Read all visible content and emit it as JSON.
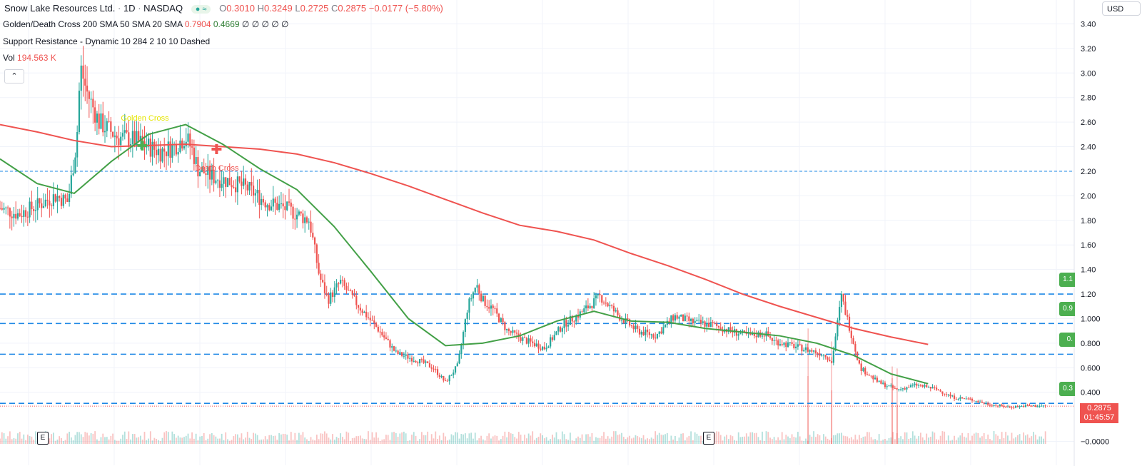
{
  "symbol": {
    "name": "Snow Lake Resources Ltd.",
    "interval": "1D",
    "exchange": "NASDAQ",
    "open_label": "O",
    "open": "0.3010",
    "high_label": "H",
    "high": "0.3249",
    "low_label": "L",
    "low": "0.2725",
    "close_label": "C",
    "close": "0.2875",
    "change": "−0.0177 (−5.80%)"
  },
  "indicators": {
    "gdc_name": "Golden/Death Cross 200 SMA 50 SMA 20 SMA",
    "gdc_v1": "0.7904",
    "gdc_v2": "0.4669",
    "gdc_rest": "∅ ∅ ∅ ∅ ∅",
    "sr_name": "Support Resistance - Dynamic 10 284 2 10 10 Dashed",
    "vol_name": "Vol",
    "vol_value": "194.563 K"
  },
  "toolbar": {
    "collapse_icon": "chevron-up-icon",
    "currency": "USD"
  },
  "last_price": {
    "value": "0.2875",
    "countdown": "01:45:57"
  },
  "sr_tags": [
    {
      "label": "1.1",
      "price": 1.2
    },
    {
      "label": "0.9",
      "price": 0.96
    },
    {
      "label": "0.",
      "price": 0.71
    },
    {
      "label": "0.3",
      "price": 0.31
    }
  ],
  "earnings_flags": [
    "E",
    "E"
  ],
  "colors": {
    "up": "#26a69a",
    "down": "#ef5350",
    "green": "#4caf50",
    "red_line": "#ef5350",
    "sma50": "#43a047",
    "sr_line": "#1e88e5",
    "grid": "#f0f3fa",
    "dotted": "#ef5350"
  },
  "chart_data": {
    "type": "line",
    "y_axis_ticks": [
      "3.40",
      "3.20",
      "3.00",
      "2.80",
      "2.60",
      "2.40",
      "2.20",
      "2.00",
      "1.80",
      "1.60",
      "1.40",
      "1.20",
      "1.000",
      "0.800",
      "0.600",
      "0.400",
      "−0.0000"
    ],
    "ylim": [
      -0.02,
      3.42
    ],
    "annotations": [
      {
        "text": "Golden Cross",
        "x_index": 115,
        "price": 2.41
      },
      {
        "text": "Death Cross",
        "x_index": 175,
        "price": 2.38
      }
    ],
    "support_resistance_levels": [
      2.2,
      1.2,
      0.96,
      0.71,
      0.31
    ],
    "sma200": {
      "x": [
        0,
        30,
        60,
        90,
        120,
        150,
        180,
        210,
        240,
        270,
        300,
        330,
        360,
        390,
        420,
        450,
        480,
        510,
        540,
        570,
        600,
        630,
        660,
        690,
        720,
        750
      ],
      "y": [
        2.58,
        2.52,
        2.45,
        2.4,
        2.41,
        2.42,
        2.4,
        2.38,
        2.34,
        2.27,
        2.18,
        2.08,
        1.97,
        1.86,
        1.76,
        1.71,
        1.64,
        1.53,
        1.43,
        1.32,
        1.2,
        1.1,
        1.01,
        0.92,
        0.85,
        0.79
      ]
    },
    "sma50": {
      "x": [
        0,
        30,
        60,
        90,
        120,
        150,
        180,
        210,
        240,
        270,
        300,
        330,
        360,
        390,
        420,
        450,
        480,
        510,
        540,
        570,
        600,
        630,
        660,
        690,
        720,
        750
      ],
      "y": [
        2.3,
        2.1,
        2.02,
        2.28,
        2.5,
        2.58,
        2.42,
        2.22,
        2.05,
        1.75,
        1.38,
        1.0,
        0.78,
        0.8,
        0.86,
        0.98,
        1.06,
        0.98,
        0.97,
        0.92,
        0.89,
        0.86,
        0.8,
        0.7,
        0.55,
        0.47
      ]
    },
    "price": {
      "x": [
        0,
        15,
        30,
        45,
        55,
        62,
        65,
        70,
        80,
        95,
        110,
        120,
        130,
        140,
        150,
        155,
        160,
        170,
        185,
        200,
        215,
        230,
        250,
        258,
        265,
        275,
        290,
        305,
        320,
        340,
        350,
        360,
        370,
        378,
        385,
        390,
        398,
        410,
        425,
        440,
        455,
        470,
        485,
        500,
        515,
        530,
        545,
        560,
        575,
        590,
        605,
        618,
        625,
        640,
        655,
        668,
        672,
        680,
        695,
        710,
        725,
        740,
        755,
        762,
        770,
        785,
        800,
        815,
        830,
        845
      ],
      "y": [
        1.9,
        1.85,
        1.92,
        2.0,
        1.95,
        2.45,
        3.05,
        2.85,
        2.6,
        2.48,
        2.45,
        2.4,
        2.36,
        2.4,
        2.48,
        2.38,
        2.22,
        2.16,
        2.12,
        2.06,
        1.95,
        1.9,
        1.8,
        1.35,
        1.15,
        1.3,
        1.1,
        0.92,
        0.72,
        0.65,
        0.6,
        0.48,
        0.62,
        1.1,
        1.28,
        1.15,
        1.08,
        0.9,
        0.82,
        0.76,
        0.95,
        1.05,
        1.18,
        1.02,
        0.9,
        0.86,
        1.02,
        0.97,
        0.95,
        0.9,
        0.86,
        0.88,
        0.82,
        0.78,
        0.74,
        0.7,
        0.64,
        1.18,
        0.6,
        0.48,
        0.42,
        0.46,
        0.43,
        0.4,
        0.36,
        0.34,
        0.3,
        0.28,
        0.29,
        0.2875
      ]
    },
    "volume_spikes": [
      {
        "x": 653,
        "h": 0.95
      },
      {
        "x": 672,
        "h": 0.75
      },
      {
        "x": 721,
        "h": 0.92
      },
      {
        "x": 725,
        "h": 0.55
      }
    ]
  }
}
